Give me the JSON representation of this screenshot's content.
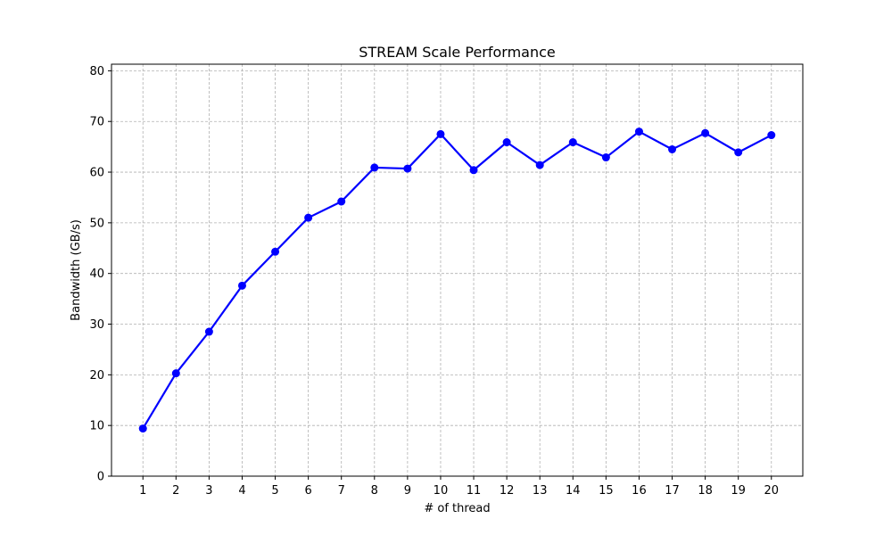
{
  "chart_data": {
    "type": "line",
    "title": "STREAM Scale Performance",
    "xlabel": "# of thread",
    "ylabel": "Bandwidth (GB/s)",
    "x": [
      1,
      2,
      3,
      4,
      5,
      6,
      7,
      8,
      9,
      10,
      11,
      12,
      13,
      14,
      15,
      16,
      17,
      18,
      19,
      20
    ],
    "series": [
      {
        "values": [
          9.4,
          20.3,
          28.5,
          37.6,
          44.3,
          51.0,
          54.2,
          60.9,
          60.7,
          67.5,
          60.4,
          65.9,
          61.4,
          65.9,
          62.9,
          68.0,
          64.5,
          67.7,
          63.9,
          67.3
        ],
        "color": "#0000ff",
        "marker": "circle"
      }
    ],
    "xticks": [
      "1",
      "2",
      "3",
      "4",
      "5",
      "6",
      "7",
      "8",
      "9",
      "10",
      "11",
      "12",
      "13",
      "14",
      "15",
      "16",
      "17",
      "18",
      "19",
      "20"
    ],
    "yticks": [
      "0",
      "10",
      "20",
      "30",
      "40",
      "50",
      "60",
      "70",
      "80"
    ],
    "xlim": [
      0.05,
      20.95
    ],
    "ylim": [
      0,
      81.3
    ],
    "grid": true,
    "grid_style": "dashed"
  }
}
